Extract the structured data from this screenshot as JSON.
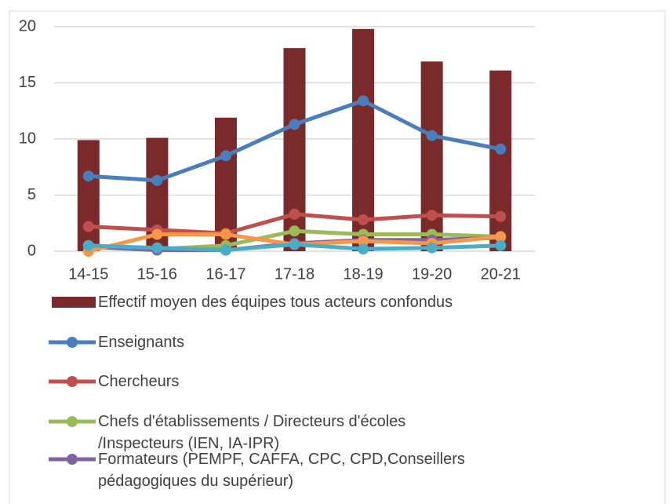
{
  "chart_data": {
    "type": "bar-line",
    "categories": [
      "14-15",
      "15-16",
      "16-17",
      "17-18",
      "18-19",
      "19-20",
      "20-21"
    ],
    "series": [
      {
        "name": "Effectif moyen des équipes tous acteurs confondus",
        "type": "bar",
        "color": "#7a2a2a",
        "values": [
          9.9,
          10.1,
          11.9,
          18.1,
          19.8,
          16.9,
          16.1
        ]
      },
      {
        "name": "Enseignants",
        "type": "line",
        "color": "#4a7ebb",
        "values": [
          6.7,
          6.3,
          8.5,
          11.3,
          13.4,
          10.3,
          9.1
        ]
      },
      {
        "name": "Chercheurs",
        "type": "line",
        "color": "#c0504d",
        "values": [
          2.2,
          1.9,
          1.6,
          3.3,
          2.8,
          3.2,
          3.1
        ]
      },
      {
        "name": "Chefs d'établissements / Directeurs d'écoles\n/Inspecteurs (IEN, IA-IPR)",
        "type": "line",
        "color": "#9bbb59",
        "values": [
          0.5,
          0.2,
          0.5,
          1.8,
          1.5,
          1.5,
          1.3
        ]
      },
      {
        "name": "Formateurs (PEMPF, CAFFA, CPC, CPD,Conseillers\npédagogiques du supérieur)",
        "type": "line",
        "color": "#8064a2",
        "values": [
          0.4,
          0.1,
          0.1,
          0.7,
          1.0,
          1.0,
          1.2
        ]
      },
      {
        "type": "line",
        "color": "#f79646",
        "values": [
          0,
          1.5,
          1.5,
          0.6,
          0.9,
          0.7,
          1.3
        ]
      },
      {
        "type": "line",
        "color": "#4bacc6",
        "values": [
          0.5,
          0.3,
          0.1,
          0.6,
          0.2,
          0.3,
          0.5
        ]
      }
    ],
    "ylim": [
      0,
      20
    ],
    "yticks": [
      0,
      5,
      10,
      15,
      20
    ],
    "grid": true,
    "legend": "bottom"
  }
}
